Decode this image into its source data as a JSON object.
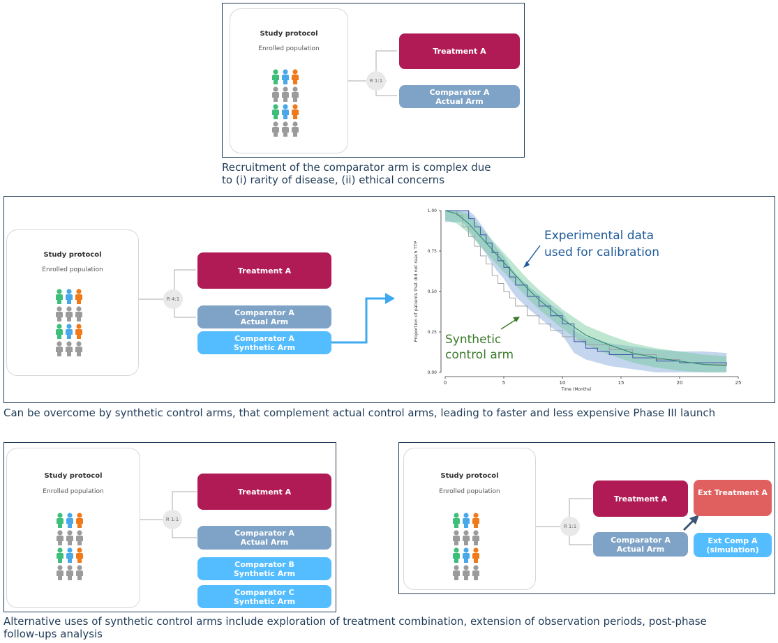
{
  "protocol": {
    "title": "Study protocol",
    "subtitle": "Enrolled population"
  },
  "panel1": {
    "randomization": "R 1:1",
    "treatment": "Treatment A",
    "comparator": [
      "Comparator A",
      "Actual Arm"
    ],
    "caption": [
      "Recruitment of the comparator arm is complex due",
      "to (i) rarity of disease, (ii) ethical concerns"
    ]
  },
  "panel2": {
    "randomization": "R 4:1",
    "treatment": "Treatment A",
    "comparator": [
      "Comparator A",
      "Actual Arm"
    ],
    "synthetic": [
      "Comparator A",
      "Synthetic Arm"
    ],
    "caption": "Can be overcome by synthetic control arms, that complement actual control arms, leading to faster and less expensive Phase III launch"
  },
  "panel3": {
    "randomization": "R 1:1",
    "treatment": "Treatment A",
    "comparator": [
      "Comparator A",
      "Actual Arm"
    ],
    "synthetic_b": [
      "Comparator B",
      "Synthetic Arm"
    ],
    "synthetic_c": [
      "Comparator C",
      "Synthetic Arm"
    ]
  },
  "panel4": {
    "randomization": "R 1:1",
    "treatment": "Treatment A",
    "comparator": [
      "Comparator A",
      "Actual Arm"
    ],
    "ext_treatment": "Ext Treatment A",
    "ext_comp": [
      "Ext Comp A",
      "(simulation)"
    ]
  },
  "bottom_caption": [
    "Alternative uses of synthetic control arms include exploration of treatment combination, extension of observation periods, post-phase",
    "follow-ups analysis"
  ],
  "colors": {
    "treatment": "#b01a55",
    "comparator": "#7fa3c6",
    "synthetic": "#53bdff",
    "ext": "#e06060",
    "people": [
      "#3dbf7a",
      "#4aa8e8",
      "#f07a1a",
      "#8a8a8a"
    ]
  },
  "chart_data": {
    "type": "line",
    "ylabel": "Proportion of patients that did not reach TTP",
    "xlabel": "Time (Months)",
    "xlim": [
      0,
      25
    ],
    "ylim": [
      0,
      1
    ],
    "xticks": [
      "0",
      "5",
      "10",
      "15",
      "20",
      "25"
    ],
    "yticks": [
      "0.00",
      "0.25",
      "0.50",
      "0.75",
      "1.00"
    ],
    "annotations": {
      "experimental": [
        "Experimental data",
        "used for calibration"
      ],
      "synthetic": [
        "Synthetic",
        "control arm"
      ]
    },
    "series": [
      {
        "name": "Experimental data",
        "color": "#3f4fa8",
        "x": [
          0,
          1.5,
          2,
          2.5,
          3,
          3.5,
          4,
          4.5,
          5,
          5.5,
          6,
          7,
          8,
          9,
          10,
          11,
          12,
          13,
          14,
          16,
          18,
          20,
          22,
          24
        ],
        "y": [
          1.0,
          1.0,
          0.95,
          0.9,
          0.85,
          0.8,
          0.74,
          0.69,
          0.65,
          0.59,
          0.54,
          0.47,
          0.41,
          0.35,
          0.3,
          0.19,
          0.15,
          0.13,
          0.11,
          0.09,
          0.07,
          0.06,
          0.06,
          0.05
        ]
      },
      {
        "name": "Synthetic control arm",
        "color": "#2e8b6a",
        "x": [
          0,
          1,
          2,
          3,
          4,
          5,
          6,
          7,
          8,
          9,
          10,
          11,
          12,
          14,
          16,
          18,
          20,
          22,
          24
        ],
        "y": [
          1.0,
          0.98,
          0.92,
          0.84,
          0.76,
          0.68,
          0.6,
          0.52,
          0.45,
          0.39,
          0.33,
          0.28,
          0.23,
          0.17,
          0.12,
          0.09,
          0.07,
          0.05,
          0.04
        ]
      },
      {
        "name": "",
        "color": "#9a9a9a",
        "x": [
          0,
          1,
          1.5,
          2,
          2.5,
          3,
          3.5,
          4,
          4.5,
          5,
          5.5,
          6,
          7,
          8,
          9,
          10,
          11,
          12,
          14,
          16,
          18,
          20,
          22,
          24
        ],
        "y": [
          1.0,
          0.97,
          0.9,
          0.84,
          0.78,
          0.72,
          0.67,
          0.6,
          0.55,
          0.5,
          0.46,
          0.41,
          0.35,
          0.3,
          0.26,
          0.22,
          0.2,
          0.17,
          0.14,
          0.11,
          0.08,
          0.06,
          0.05,
          0.04
        ]
      }
    ]
  }
}
